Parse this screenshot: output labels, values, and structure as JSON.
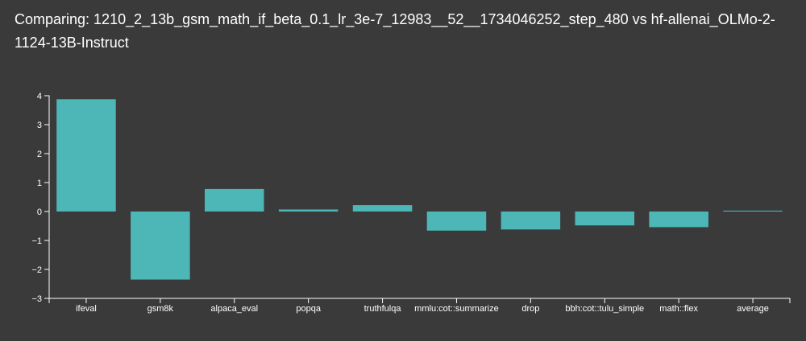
{
  "chart_data": {
    "type": "bar",
    "title": "Comparing: 1210_2_13b_gsm_math_if_beta_0.1_lr_3e-7_12983__52__1734046252_step_480 vs hf-allenai_OLMo-2-1124-13B-Instruct",
    "xlabel": "",
    "ylabel": "",
    "categories": [
      "ifeval",
      "gsm8k",
      "alpaca_eval",
      "popqa",
      "truthfulqa",
      "mmlu:cot::summarize",
      "drop",
      "bbh:cot::tulu_simple",
      "math::flex",
      "average"
    ],
    "values": [
      3.88,
      -2.35,
      0.78,
      0.07,
      0.22,
      -0.66,
      -0.62,
      -0.48,
      -0.54,
      0.03
    ],
    "ylim": [
      -3,
      4
    ],
    "yticks": [
      -3,
      -2,
      -1,
      0,
      1,
      2,
      3,
      4
    ],
    "ytick_labels": [
      "−3",
      "−2",
      "−1",
      "0",
      "1",
      "2",
      "3",
      "4"
    ],
    "grid": false,
    "colors": {
      "bar": "#4db6b6",
      "background": "#3a3a3a",
      "text": "#ffffff",
      "axis": "#ffffff"
    }
  }
}
